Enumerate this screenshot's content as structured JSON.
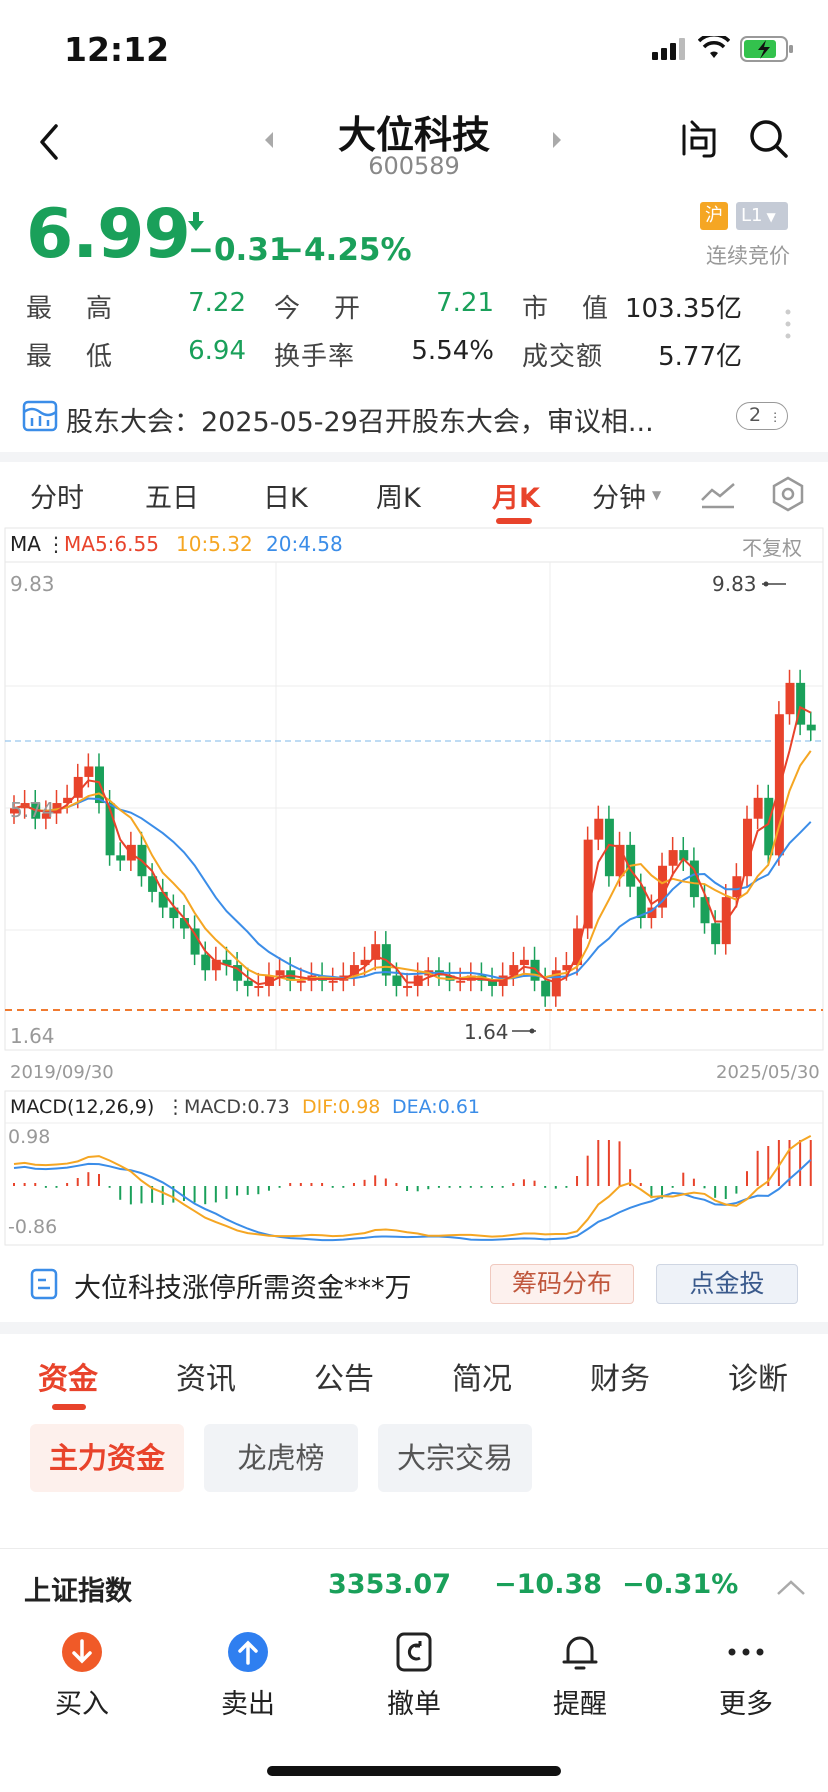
{
  "status": {
    "time": "12:12"
  },
  "header": {
    "title": "大位科技",
    "code": "600589"
  },
  "quote": {
    "price": "6.99",
    "change": "−0.31",
    "change_pct": "−4.25%",
    "market_tag": "沪",
    "level_tag": "L1",
    "auction": "连续竞价",
    "stats": [
      {
        "label": "最　高",
        "value": "7.22",
        "label2": "今　开",
        "value2": "7.21",
        "label3": "市　值",
        "value3": "103.35亿"
      },
      {
        "label": "最　低",
        "value": "6.94",
        "label2": "换手率",
        "value2": "5.54%",
        "label3": "成交额",
        "value3": "5.77亿"
      }
    ]
  },
  "notice": {
    "text": "股东大会：2025-05-29召开股东大会，审议相...",
    "badge": "2"
  },
  "ktabs": {
    "items": [
      "分时",
      "五日",
      "日K",
      "周K",
      "月K",
      "分钟"
    ],
    "active": "月K"
  },
  "kchart": {
    "ma_label": "MA",
    "ma5": "MA5:6.55",
    "ma10": "10:5.32",
    "ma20": "20:4.58",
    "adjust": "不复权",
    "y_top": "9.83",
    "y_mid": "5.74",
    "y_bottom": "1.64",
    "max_label": "9.83",
    "min_label": "1.64",
    "date_start": "2019/09/30",
    "date_end": "2025/05/30",
    "colors": {
      "up": "#e8432b",
      "down": "#1aa05a",
      "ma5": "#e8432b",
      "ma10": "#f5a623",
      "ma20": "#3b8de8"
    }
  },
  "macd": {
    "title": "MACD(12,26,9)",
    "macd": "MACD:0.73",
    "dif": "DIF:0.98",
    "dea": "DEA:0.61",
    "y_top": "0.98",
    "y_bottom": "-0.86"
  },
  "chip": {
    "text": "大位科技涨停所需资金***万",
    "btn1": "筹码分布",
    "btn2": "点金投"
  },
  "content_tabs": {
    "items": [
      "资金",
      "资讯",
      "公告",
      "简况",
      "财务",
      "诊断"
    ],
    "active": "资金"
  },
  "sub_tabs": [
    "主力资金",
    "龙虎榜",
    "大宗交易"
  ],
  "index_bar": {
    "name": "上证指数",
    "value": "3353.07",
    "change": "−10.38",
    "pct": "−0.31%"
  },
  "toolbar": [
    "买入",
    "卖出",
    "撤单",
    "提醒",
    "更多"
  ]
}
